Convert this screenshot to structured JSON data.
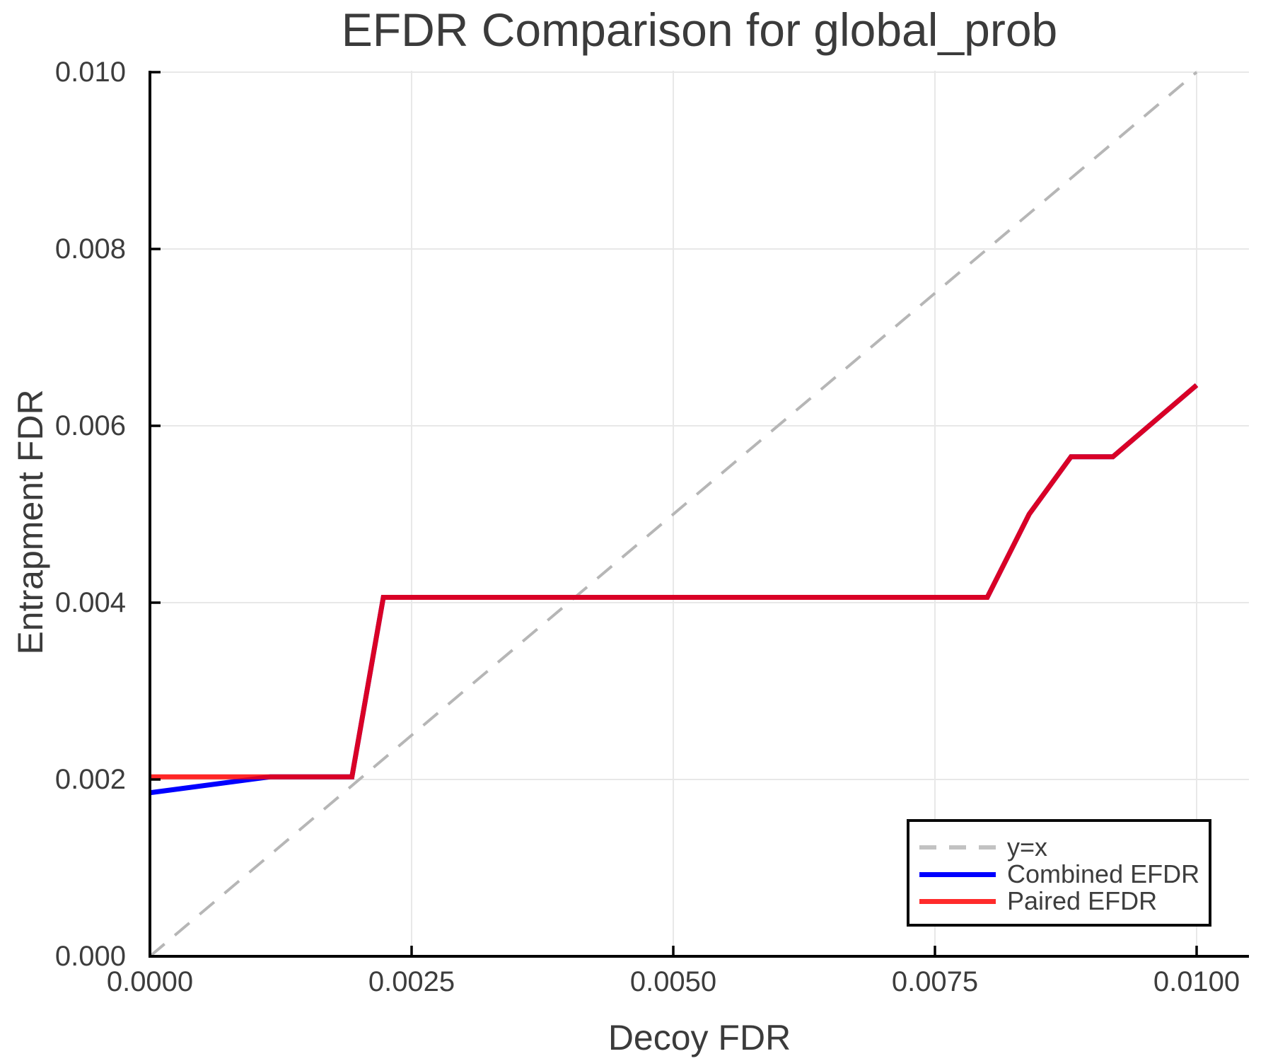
{
  "title": "EFDR Comparison for global_prob",
  "axes": {
    "x_label": "Decoy FDR",
    "y_label": "Entrapment FDR",
    "x_tick_labels": [
      "0.0000",
      "0.0025",
      "0.0050",
      "0.0075",
      "0.0100"
    ],
    "y_tick_labels": [
      "0.000",
      "0.002",
      "0.004",
      "0.006",
      "0.008",
      "0.010"
    ]
  },
  "legend": {
    "entries": [
      {
        "label": "y=x",
        "style": "dashed",
        "color": "#c2c2c2"
      },
      {
        "label": "Combined EFDR",
        "style": "solid",
        "color": "#0000ff"
      },
      {
        "label": "Paired EFDR",
        "style": "solid",
        "color": "#ff2b2b"
      }
    ]
  },
  "colors": {
    "text": "#3b3b3b",
    "tick_text": "#3d3d3d",
    "grid": "#e8e8e8",
    "axis_frame": "#000000",
    "reference_line": "#b6b6b6",
    "combined_line": "#0000ff",
    "paired_line": "#ff0000",
    "background": "#ffffff"
  },
  "chart_data": {
    "type": "line",
    "title": "EFDR Comparison for global_prob",
    "xlabel": "Decoy FDR",
    "ylabel": "Entrapment FDR",
    "xlim": [
      0,
      0.0105
    ],
    "ylim": [
      0,
      0.01
    ],
    "grid": true,
    "legend_position": "bottom-right",
    "x_tick_values": [
      0,
      0.0025,
      0.005,
      0.0075,
      0.01
    ],
    "y_tick_values": [
      0,
      0.002,
      0.004,
      0.006,
      0.008,
      0.01
    ],
    "series": [
      {
        "name": "y=x",
        "style": "dashed",
        "color": "#b6b6b6",
        "width": 4,
        "opacity": 1,
        "x": [
          0,
          0.01
        ],
        "y": [
          0,
          0.01
        ]
      },
      {
        "name": "Combined EFDR",
        "style": "solid",
        "color": "#0000ff",
        "width": 7,
        "opacity": 1,
        "x": [
          0,
          0.00115,
          0.00193,
          0.00223,
          0.008,
          0.0084,
          0.0088,
          0.0092,
          0.01
        ],
        "y": [
          0.00185,
          0.00203,
          0.00203,
          0.00406,
          0.00406,
          0.005,
          0.00565,
          0.00565,
          0.00646
        ]
      },
      {
        "name": "Paired EFDR",
        "style": "solid",
        "color": "#ff0000",
        "width": 7,
        "opacity": 0.85,
        "x": [
          0,
          0.00193,
          0.00223,
          0.008,
          0.0084,
          0.0088,
          0.0092,
          0.01
        ],
        "y": [
          0.00203,
          0.00203,
          0.00406,
          0.00406,
          0.005,
          0.00565,
          0.00565,
          0.00646
        ]
      }
    ]
  }
}
